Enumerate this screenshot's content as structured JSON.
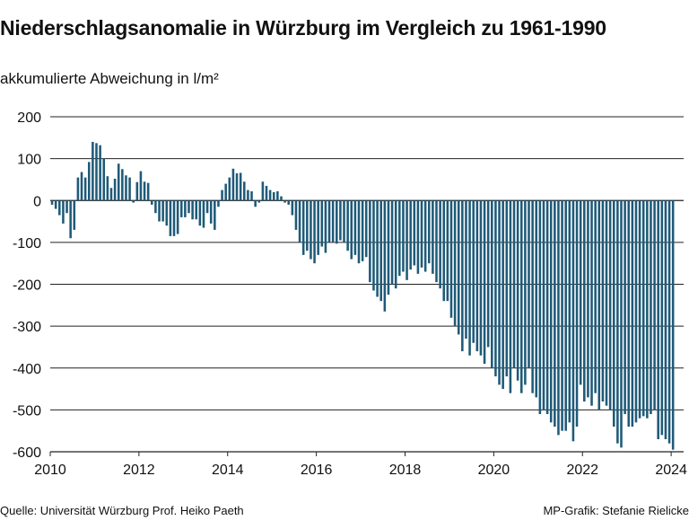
{
  "chart_data": {
    "type": "bar",
    "title": "Niederschlagsanomalie in Würzburg im Vergleich zu 1961-1990",
    "ylabel": "akkumulierte Abweichung in l/m²",
    "xlabel": "",
    "ylim": [
      -600,
      200
    ],
    "yticks": [
      200,
      100,
      0,
      -100,
      -200,
      -300,
      -400,
      -500,
      -600
    ],
    "ytick_labels": [
      "200",
      "100",
      "0",
      "-100",
      "-200",
      "-300",
      "-400",
      "-500",
      "-600"
    ],
    "xlim": [
      2010,
      2024.2
    ],
    "xticks": [
      2010,
      2012,
      2014,
      2016,
      2018,
      2020,
      2022,
      2024
    ],
    "xtick_labels": [
      "2010",
      "2012",
      "2014",
      "2016",
      "2018",
      "2020",
      "2022",
      "2024"
    ],
    "grid": "horizontal",
    "bar_color": "#1f5a78",
    "start_month": "2010-01",
    "interval": "monthly",
    "values": [
      -10,
      -20,
      -35,
      -55,
      -30,
      -90,
      -70,
      55,
      68,
      55,
      92,
      140,
      137,
      132,
      100,
      58,
      30,
      52,
      88,
      75,
      60,
      55,
      -5,
      44,
      70,
      45,
      42,
      -10,
      -30,
      -50,
      -50,
      -60,
      -85,
      -85,
      -80,
      -40,
      -40,
      -30,
      -45,
      -45,
      -60,
      -65,
      -30,
      -55,
      -70,
      -15,
      25,
      40,
      55,
      76,
      65,
      66,
      45,
      25,
      22,
      -15,
      -5,
      45,
      35,
      25,
      20,
      22,
      10,
      -5,
      -10,
      -35,
      -70,
      -100,
      -130,
      -120,
      -140,
      -150,
      -130,
      -110,
      -125,
      -100,
      -100,
      -103,
      -95,
      -100,
      -120,
      -140,
      -130,
      -150,
      -145,
      -135,
      -195,
      -215,
      -230,
      -240,
      -265,
      -225,
      -200,
      -210,
      -180,
      -170,
      -190,
      -165,
      -155,
      -175,
      -160,
      -170,
      -150,
      -175,
      -195,
      -210,
      -240,
      -240,
      -280,
      -300,
      -320,
      -360,
      -330,
      -370,
      -340,
      -360,
      -370,
      -390,
      -350,
      -400,
      -420,
      -440,
      -450,
      -420,
      -460,
      -400,
      -430,
      -460,
      -440,
      -400,
      -460,
      -470,
      -510,
      -500,
      -510,
      -530,
      -540,
      -560,
      -550,
      -550,
      -530,
      -575,
      -540,
      -440,
      -480,
      -470,
      -490,
      -460,
      -500,
      -480,
      -490,
      -500,
      -540,
      -580,
      -590,
      -510,
      -540,
      -540,
      -530,
      -520,
      -515,
      -520,
      -510,
      -500,
      -570,
      -560,
      -570,
      -580,
      -595
    ]
  },
  "footer": {
    "source": "Quelle: Universität Würzburg Prof. Heiko Paeth",
    "credit": "MP-Grafik: Stefanie Rielicke"
  }
}
